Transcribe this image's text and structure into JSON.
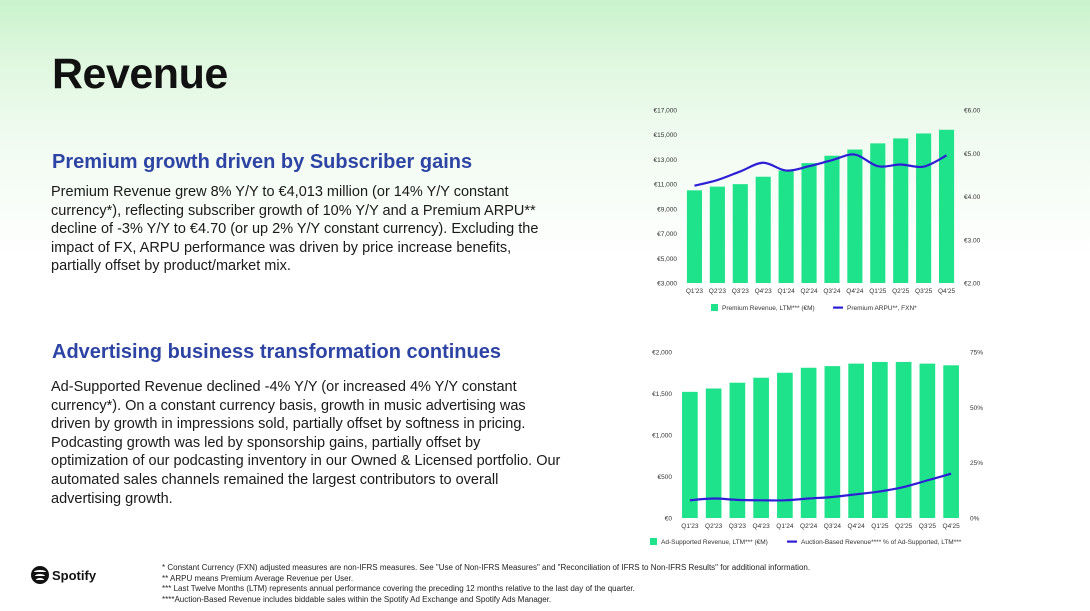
{
  "page": {
    "title": "Revenue"
  },
  "premium": {
    "heading": "Premium growth driven by Subscriber gains",
    "body": "Premium Revenue grew 8% Y/Y to €4,013 million (or 14% Y/Y constant currency*), reflecting subscriber growth of 10% Y/Y and a Premium ARPU** decline of -3% Y/Y to €4.70 (or up 2% Y/Y constant currency). Excluding the impact of FX, ARPU performance was driven by price increase benefits, partially offset by product/market mix."
  },
  "advertising": {
    "heading": "Advertising business transformation continues",
    "body": "Ad-Supported Revenue declined -4% Y/Y (or increased 4% Y/Y constant currency*). On a constant currency basis, growth in music advertising was driven by growth in impressions sold, partially offset by softness in pricing. Podcasting growth was led by sponsorship gains, partially offset by optimization of our podcasting inventory in our Owned & Licensed portfolio. Our automated sales channels remained the largest contributors to overall advertising growth."
  },
  "footnotes": [
    "* Constant Currency (FXN) adjusted measures are non-IFRS measures. See \"Use of Non-IFRS Measures\" and \"Reconciliation of IFRS to Non-IFRS Results\" for additional information.",
    "** ARPU means Premium Average Revenue per User.",
    "*** Last Twelve Months (LTM) represents annual performance covering the preceding 12 months relative to the last day of the quarter.",
    "****Auction-Based Revenue includes biddable sales within the Spotify Ad Exchange and Spotify Ads Manager."
  ],
  "brand": {
    "name": "Spotify",
    "icon": "spotify-logo-icon"
  },
  "colors": {
    "bar": "#1ee38a",
    "line": "#2e1fd6",
    "heading": "#2e44a4"
  },
  "chart_data": [
    {
      "type": "bar",
      "categories": [
        "Q1'23",
        "Q2'23",
        "Q3'23",
        "Q4'23",
        "Q1'24",
        "Q2'24",
        "Q3'24",
        "Q4'24",
        "Q1'25",
        "Q2'25",
        "Q3'25",
        "Q4'25"
      ],
      "series": [
        {
          "name": "Premium Revenue, LTM*** (€M)",
          "type": "bar",
          "axis": "left",
          "values": [
            10500,
            10800,
            11000,
            11600,
            12100,
            12700,
            13300,
            13800,
            14300,
            14700,
            15100,
            15400
          ]
        },
        {
          "name": "Premium ARPU**, FXN*",
          "type": "line",
          "axis": "right",
          "values": [
            4.25,
            4.38,
            4.58,
            4.78,
            4.6,
            4.7,
            4.84,
            4.97,
            4.7,
            4.74,
            4.69,
            4.95
          ]
        }
      ],
      "y_left": {
        "min": 3000,
        "max": 17000,
        "ticks": [
          3000,
          5000,
          7000,
          9000,
          11000,
          13000,
          15000,
          17000
        ],
        "tick_labels": [
          "€3,000",
          "€5,000",
          "€7,000",
          "€9,000",
          "€11,000",
          "€13,000",
          "€15,000",
          "€17,000"
        ]
      },
      "y_right": {
        "min": 2,
        "max": 6,
        "ticks": [
          2,
          3,
          4,
          5,
          6
        ],
        "tick_labels": [
          "€2.00",
          "€3.00",
          "€4.00",
          "€5.00",
          "€6.00"
        ]
      },
      "legend": [
        "Premium Revenue, LTM*** (€M)",
        "Premium ARPU**, FXN*"
      ],
      "legend_position": "bottom"
    },
    {
      "type": "bar",
      "categories": [
        "Q1'23",
        "Q2'23",
        "Q3'23",
        "Q4'23",
        "Q1'24",
        "Q2'24",
        "Q3'24",
        "Q4'24",
        "Q1'25",
        "Q2'25",
        "Q3'25",
        "Q4'25"
      ],
      "series": [
        {
          "name": "Ad-Supported Revenue, LTM*** (€M)",
          "type": "bar",
          "axis": "left",
          "values": [
            1520,
            1560,
            1630,
            1690,
            1750,
            1810,
            1830,
            1860,
            1880,
            1880,
            1860,
            1840
          ]
        },
        {
          "name": "Auction-Based Revenue**** % of Ad-Supported, LTM***",
          "type": "line",
          "axis": "right",
          "values": [
            8,
            8.8,
            8.2,
            8,
            8,
            8.8,
            9.5,
            10.7,
            12,
            14,
            17,
            20
          ]
        }
      ],
      "y_left": {
        "min": 0,
        "max": 2000,
        "ticks": [
          0,
          500,
          1000,
          1500,
          2000
        ],
        "tick_labels": [
          "€0",
          "€500",
          "€1,000",
          "€1,500",
          "€2,000"
        ]
      },
      "y_right": {
        "min": 0,
        "max": 75,
        "ticks": [
          0,
          25,
          50,
          75
        ],
        "tick_labels": [
          "0%",
          "25%",
          "50%",
          "75%"
        ]
      },
      "legend": [
        "Ad-Supported Revenue, LTM*** (€M)",
        "Auction-Based Revenue**** % of Ad-Supported, LTM***"
      ],
      "legend_position": "bottom"
    }
  ]
}
